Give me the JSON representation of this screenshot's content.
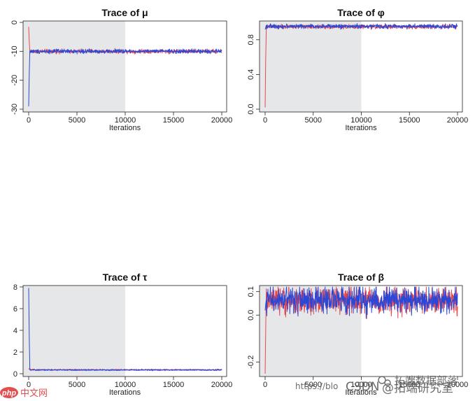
{
  "chart_data": [
    {
      "type": "line",
      "title": "Trace of  μ",
      "xlabel": "Iterations",
      "ylabel": "",
      "xlim": [
        0,
        20000
      ],
      "ylim": [
        -30,
        0
      ],
      "x_ticks": [
        0,
        5000,
        10000,
        15000,
        20000
      ],
      "y_ticks": [
        0,
        -10,
        -20,
        -30
      ],
      "y_tick_rotation": "vertical",
      "burnin_shaded_range": [
        0,
        10000
      ],
      "series": [
        {
          "color": "#e8484b",
          "start": -1.5,
          "mean": -10.0,
          "noise": 0.35
        },
        {
          "color": "#2a48d8",
          "start": -29.0,
          "mean": -10.0,
          "noise": 0.35
        }
      ]
    },
    {
      "type": "line",
      "title": "Trace of  φ",
      "xlabel": "Iterations",
      "ylabel": "",
      "xlim": [
        0,
        20000
      ],
      "ylim": [
        0,
        1
      ],
      "x_ticks": [
        0,
        5000,
        10000,
        15000,
        20000
      ],
      "y_ticks": [
        0.0,
        0.4,
        0.8
      ],
      "y_tick_labels": [
        "0.0",
        "0.4",
        "0.8"
      ],
      "y_tick_rotation": "vertical",
      "burnin_shaded_range": [
        0,
        10000
      ],
      "series": [
        {
          "color": "#e8484b",
          "start": 0.02,
          "mean": 0.95,
          "noise": 0.012
        },
        {
          "color": "#2a48d8",
          "start": 0.92,
          "mean": 0.955,
          "noise": 0.012
        }
      ]
    },
    {
      "type": "line",
      "title": "Trace of  τ",
      "xlabel": "Iterations",
      "ylabel": "",
      "xlim": [
        0,
        20000
      ],
      "ylim": [
        0,
        8
      ],
      "x_ticks": [
        0,
        5000,
        10000,
        15000,
        20000
      ],
      "y_ticks": [
        0,
        2,
        4,
        6,
        8
      ],
      "y_tick_rotation": "horizontal",
      "burnin_shaded_range": [
        0,
        10000
      ],
      "series": [
        {
          "color": "#e8484b",
          "start": 0.5,
          "mean": 0.35,
          "noise": 0.03
        },
        {
          "color": "#2a48d8",
          "start": 7.9,
          "mean": 0.35,
          "noise": 0.03
        }
      ]
    },
    {
      "type": "line",
      "title": "Trace of  β",
      "xlabel": "Iterations",
      "ylabel": "",
      "xlim": [
        0,
        20000
      ],
      "ylim": [
        -0.25,
        0.12
      ],
      "x_ticks": [
        0,
        5000,
        10000,
        15000,
        20000
      ],
      "y_ticks": [
        0.1,
        0.0,
        -0.2
      ],
      "y_tick_labels": [
        "0.1",
        "0.0",
        "-0.2"
      ],
      "y_tick_rotation": "vertical",
      "burnin_shaded_range": [
        0,
        10000
      ],
      "series": [
        {
          "color": "#e8484b",
          "start": -0.25,
          "mean": 0.06,
          "noise": 0.028
        },
        {
          "color": "#2a48d8",
          "start": 0.02,
          "mean": 0.065,
          "noise": 0.028
        }
      ]
    }
  ],
  "watermarks": {
    "blog": "https://blo",
    "csdn": "CSDN",
    "handle": "@拓端研究室",
    "wechat": "拓端数据部落",
    "php_logo": "php",
    "php_site": "中文网"
  },
  "colors": {
    "burnin_shade": "#e6e7e8",
    "axis": "#222222"
  }
}
